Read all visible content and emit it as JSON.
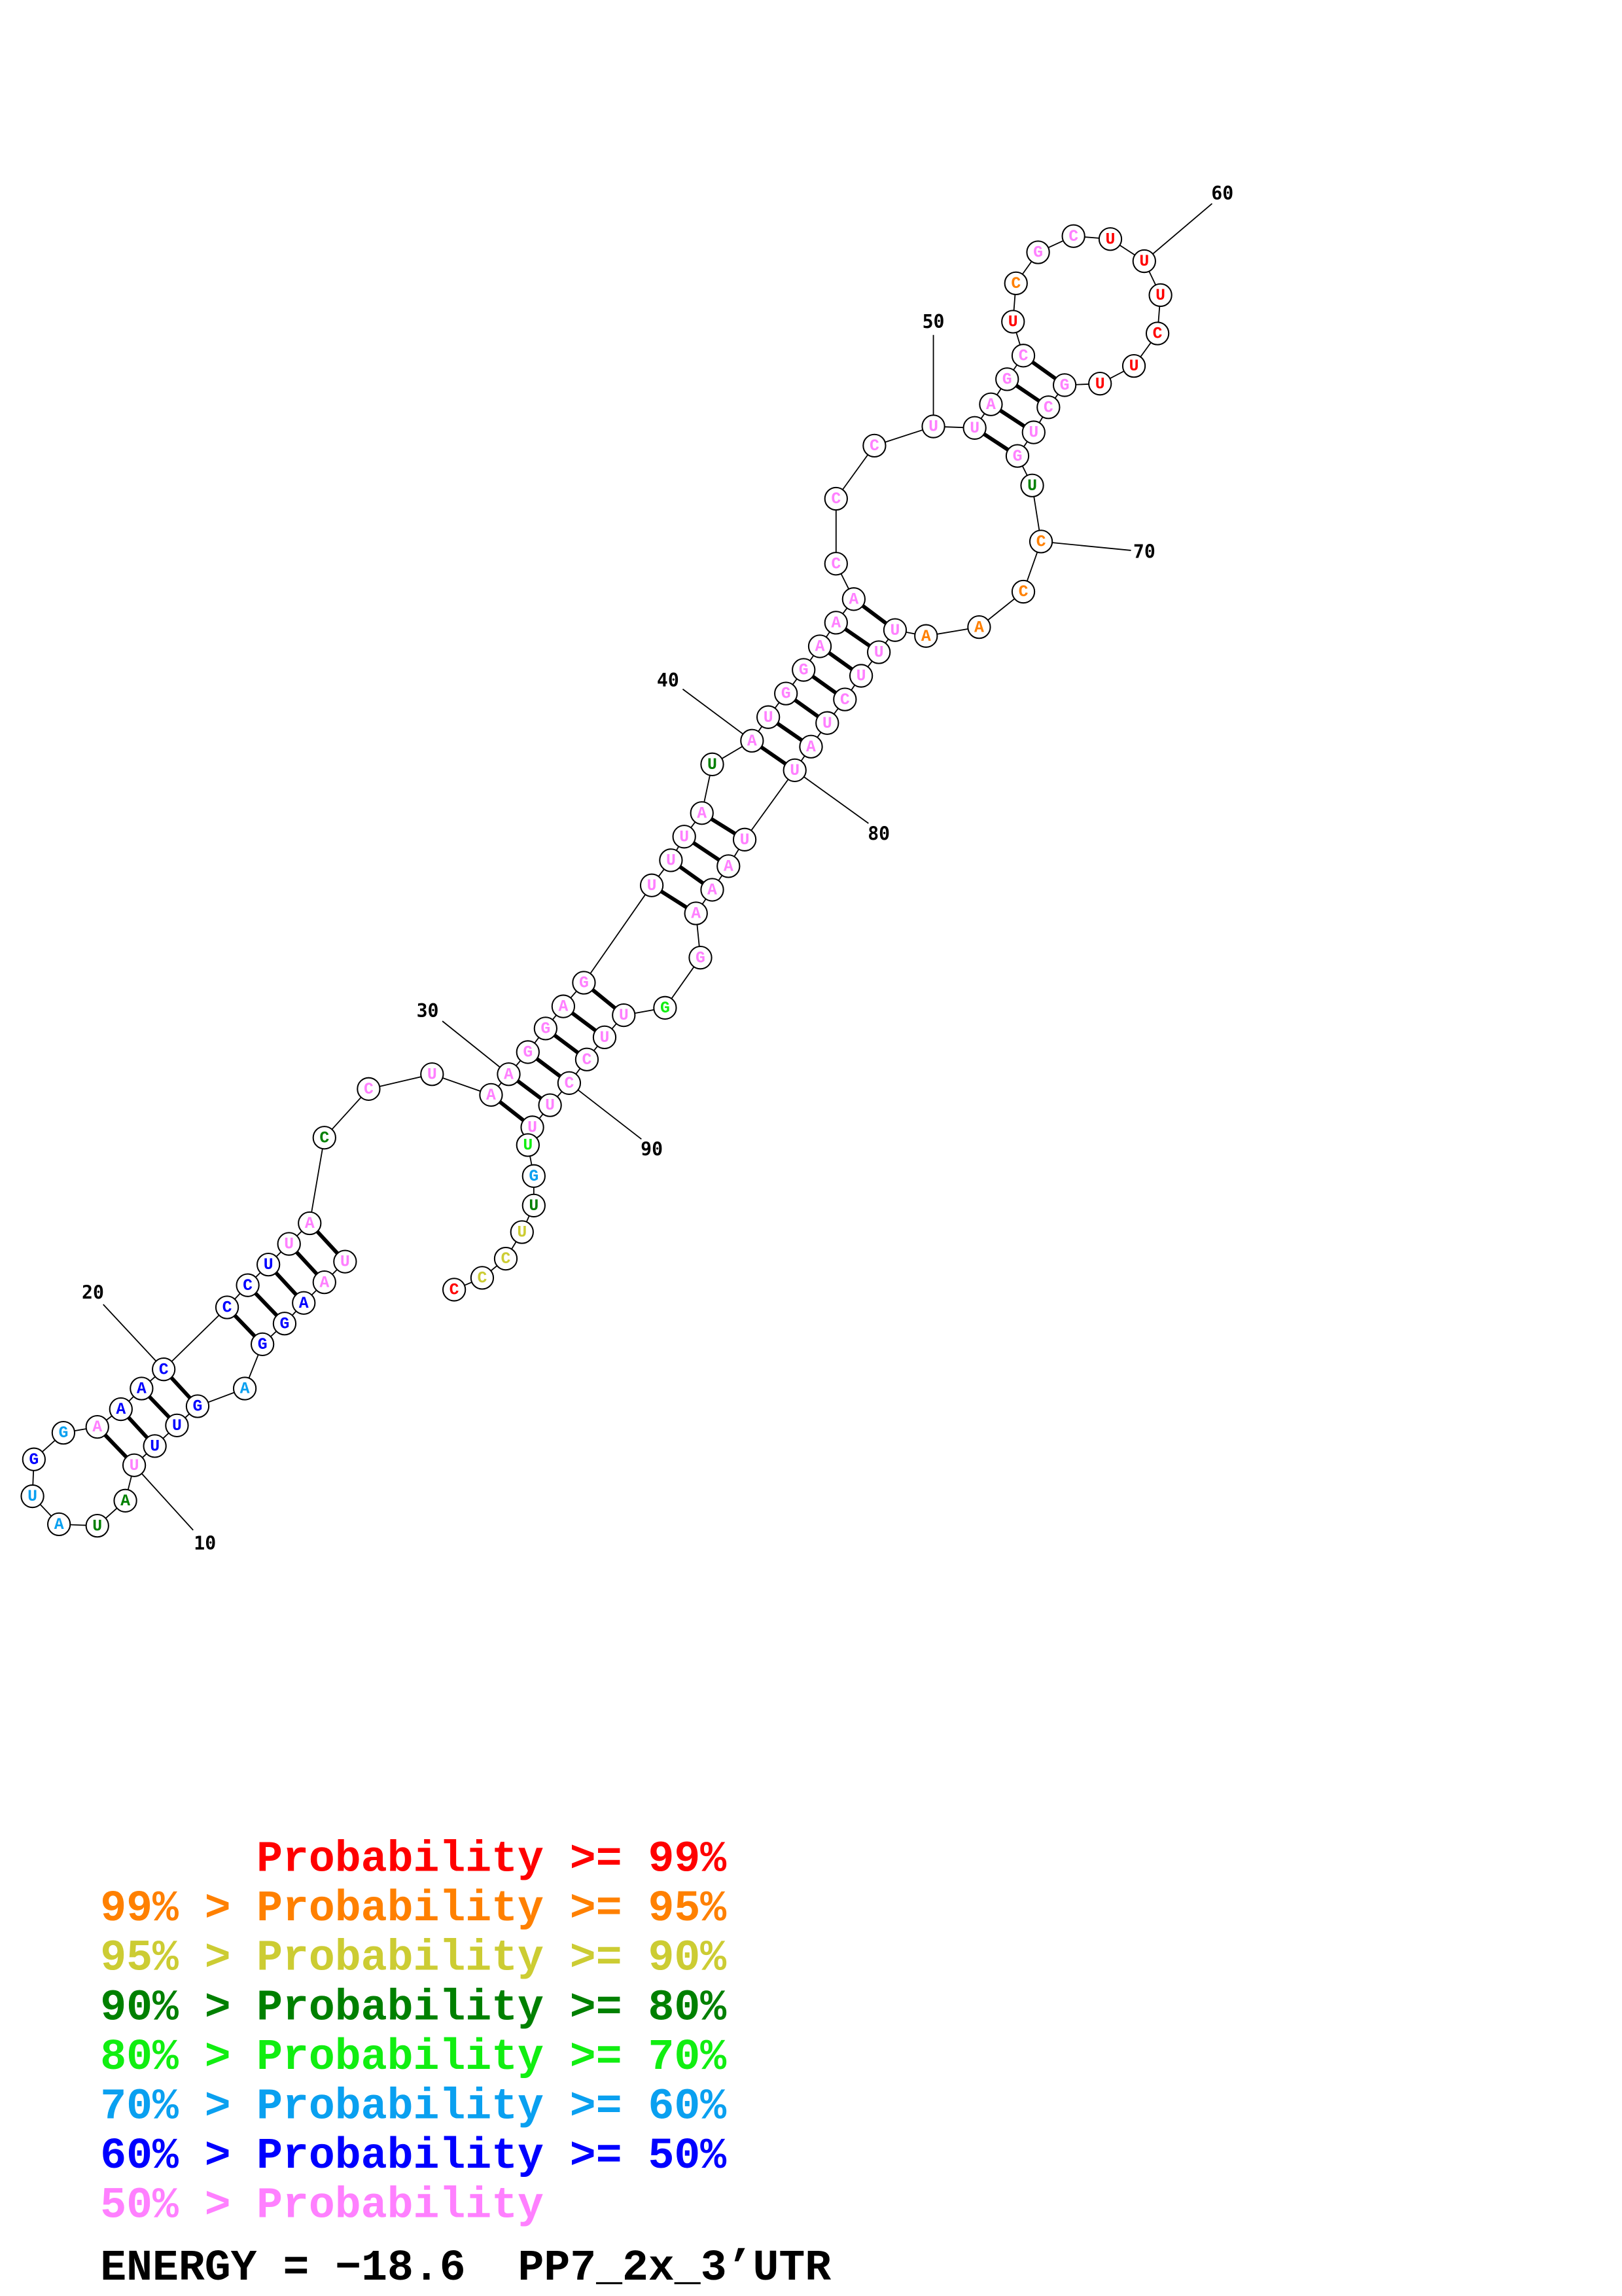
{
  "probability_colors": {
    "ge99": "#FF0000",
    "ge95": "#FF8000",
    "ge90": "#CCCC33",
    "ge80": "#008000",
    "ge70": "#11EE11",
    "ge60": "#0AA0F0",
    "ge50": "#0000FF",
    "lt50": "#FF80FF"
  },
  "structure": {
    "nucleotides": [
      {
        "base": "U",
        "p": "lt50"
      },
      {
        "base": "A",
        "p": "lt50"
      },
      {
        "base": "A",
        "p": "ge50"
      },
      {
        "base": "G",
        "p": "ge50"
      },
      {
        "base": "G",
        "p": "ge50"
      },
      {
        "base": "A",
        "p": "ge60"
      },
      {
        "base": "G",
        "p": "ge50"
      },
      {
        "base": "U",
        "p": "ge50"
      },
      {
        "base": "U",
        "p": "ge50"
      },
      {
        "base": "U",
        "p": "lt50"
      },
      {
        "base": "A",
        "p": "ge80"
      },
      {
        "base": "U",
        "p": "ge80"
      },
      {
        "base": "A",
        "p": "ge60"
      },
      {
        "base": "U",
        "p": "ge60"
      },
      {
        "base": "G",
        "p": "ge50"
      },
      {
        "base": "G",
        "p": "ge60"
      },
      {
        "base": "A",
        "p": "lt50"
      },
      {
        "base": "A",
        "p": "ge50"
      },
      {
        "base": "A",
        "p": "ge50"
      },
      {
        "base": "C",
        "p": "ge50"
      },
      {
        "base": "C",
        "p": "ge50"
      },
      {
        "base": "C",
        "p": "ge50"
      },
      {
        "base": "U",
        "p": "ge50"
      },
      {
        "base": "U",
        "p": "lt50"
      },
      {
        "base": "A",
        "p": "lt50"
      },
      {
        "base": "C",
        "p": "ge80"
      },
      {
        "base": "C",
        "p": "lt50"
      },
      {
        "base": "U",
        "p": "lt50"
      },
      {
        "base": "A",
        "p": "lt50"
      },
      {
        "base": "A",
        "p": "lt50"
      },
      {
        "base": "G",
        "p": "lt50"
      },
      {
        "base": "G",
        "p": "lt50"
      },
      {
        "base": "A",
        "p": "lt50"
      },
      {
        "base": "G",
        "p": "lt50"
      },
      {
        "base": "U",
        "p": "lt50"
      },
      {
        "base": "U",
        "p": "lt50"
      },
      {
        "base": "U",
        "p": "lt50"
      },
      {
        "base": "A",
        "p": "lt50"
      },
      {
        "base": "U",
        "p": "ge80"
      },
      {
        "base": "A",
        "p": "lt50"
      },
      {
        "base": "U",
        "p": "lt50"
      },
      {
        "base": "G",
        "p": "lt50"
      },
      {
        "base": "G",
        "p": "lt50"
      },
      {
        "base": "A",
        "p": "lt50"
      },
      {
        "base": "A",
        "p": "lt50"
      },
      {
        "base": "A",
        "p": "lt50"
      },
      {
        "base": "C",
        "p": "lt50"
      },
      {
        "base": "C",
        "p": "lt50"
      },
      {
        "base": "C",
        "p": "lt50"
      },
      {
        "base": "U",
        "p": "lt50"
      },
      {
        "base": "U",
        "p": "lt50"
      },
      {
        "base": "A",
        "p": "lt50"
      },
      {
        "base": "G",
        "p": "lt50"
      },
      {
        "base": "C",
        "p": "lt50"
      },
      {
        "base": "U",
        "p": "ge99"
      },
      {
        "base": "C",
        "p": "ge95"
      },
      {
        "base": "G",
        "p": "lt50"
      },
      {
        "base": "C",
        "p": "lt50"
      },
      {
        "base": "U",
        "p": "ge99"
      },
      {
        "base": "U",
        "p": "ge99"
      },
      {
        "base": "U",
        "p": "ge99"
      },
      {
        "base": "C",
        "p": "ge99"
      },
      {
        "base": "U",
        "p": "ge99"
      },
      {
        "base": "U",
        "p": "ge99"
      },
      {
        "base": "G",
        "p": "lt50"
      },
      {
        "base": "C",
        "p": "lt50"
      },
      {
        "base": "U",
        "p": "lt50"
      },
      {
        "base": "G",
        "p": "lt50"
      },
      {
        "base": "U",
        "p": "ge80"
      },
      {
        "base": "C",
        "p": "ge95"
      },
      {
        "base": "C",
        "p": "ge95"
      },
      {
        "base": "A",
        "p": "ge95"
      },
      {
        "base": "A",
        "p": "ge95"
      },
      {
        "base": "U",
        "p": "lt50"
      },
      {
        "base": "U",
        "p": "lt50"
      },
      {
        "base": "U",
        "p": "lt50"
      },
      {
        "base": "C",
        "p": "lt50"
      },
      {
        "base": "U",
        "p": "lt50"
      },
      {
        "base": "A",
        "p": "lt50"
      },
      {
        "base": "U",
        "p": "lt50"
      },
      {
        "base": "U",
        "p": "lt50"
      },
      {
        "base": "A",
        "p": "lt50"
      },
      {
        "base": "A",
        "p": "lt50"
      },
      {
        "base": "A",
        "p": "lt50"
      },
      {
        "base": "G",
        "p": "lt50"
      },
      {
        "base": "G",
        "p": "ge70"
      },
      {
        "base": "U",
        "p": "lt50"
      },
      {
        "base": "U",
        "p": "lt50"
      },
      {
        "base": "C",
        "p": "lt50"
      },
      {
        "base": "C",
        "p": "lt50"
      },
      {
        "base": "U",
        "p": "lt50"
      },
      {
        "base": "U",
        "p": "lt50"
      },
      {
        "base": "U",
        "p": "ge70"
      },
      {
        "base": "G",
        "p": "ge60"
      },
      {
        "base": "U",
        "p": "ge80"
      },
      {
        "base": "U",
        "p": "ge90"
      },
      {
        "base": "C",
        "p": "ge90"
      },
      {
        "base": "C",
        "p": "ge90"
      },
      {
        "base": "C",
        "p": "ge99"
      }
    ],
    "pairs": [
      [
        1,
        25
      ],
      [
        2,
        24
      ],
      [
        3,
        23
      ],
      [
        4,
        22
      ],
      [
        5,
        21
      ],
      [
        7,
        20
      ],
      [
        8,
        19
      ],
      [
        9,
        18
      ],
      [
        10,
        17
      ],
      [
        29,
        92
      ],
      [
        30,
        91
      ],
      [
        31,
        90
      ],
      [
        32,
        89
      ],
      [
        33,
        88
      ],
      [
        34,
        87
      ],
      [
        35,
        84
      ],
      [
        36,
        83
      ],
      [
        37,
        82
      ],
      [
        38,
        81
      ],
      [
        40,
        80
      ],
      [
        41,
        79
      ],
      [
        42,
        78
      ],
      [
        43,
        77
      ],
      [
        44,
        76
      ],
      [
        45,
        75
      ],
      [
        46,
        74
      ],
      [
        51,
        68
      ],
      [
        52,
        67
      ],
      [
        53,
        66
      ],
      [
        54,
        65
      ]
    ],
    "position_labels": [
      "10",
      "20",
      "30",
      "40",
      "50",
      "60",
      "70",
      "80",
      "90"
    ]
  },
  "legend": [
    {
      "prefix": "",
      "text": "Probability >= 99%",
      "p": "ge99"
    },
    {
      "prefix": "99% >",
      "text": "Probability >= 95%",
      "p": "ge95"
    },
    {
      "prefix": "95% >",
      "text": "Probability >= 90%",
      "p": "ge90"
    },
    {
      "prefix": "90% >",
      "text": "Probability >= 80%",
      "p": "ge80"
    },
    {
      "prefix": "80% >",
      "text": "Probability >= 70%",
      "p": "ge70"
    },
    {
      "prefix": "70% >",
      "text": "Probability >= 60%",
      "p": "ge60"
    },
    {
      "prefix": "60% >",
      "text": "Probability >= 50%",
      "p": "ge50"
    },
    {
      "prefix": "50% >",
      "text": "Probability",
      "p": "lt50"
    }
  ],
  "energy_line": "ENERGY = −18.6  PP7_2x_3’UTR"
}
